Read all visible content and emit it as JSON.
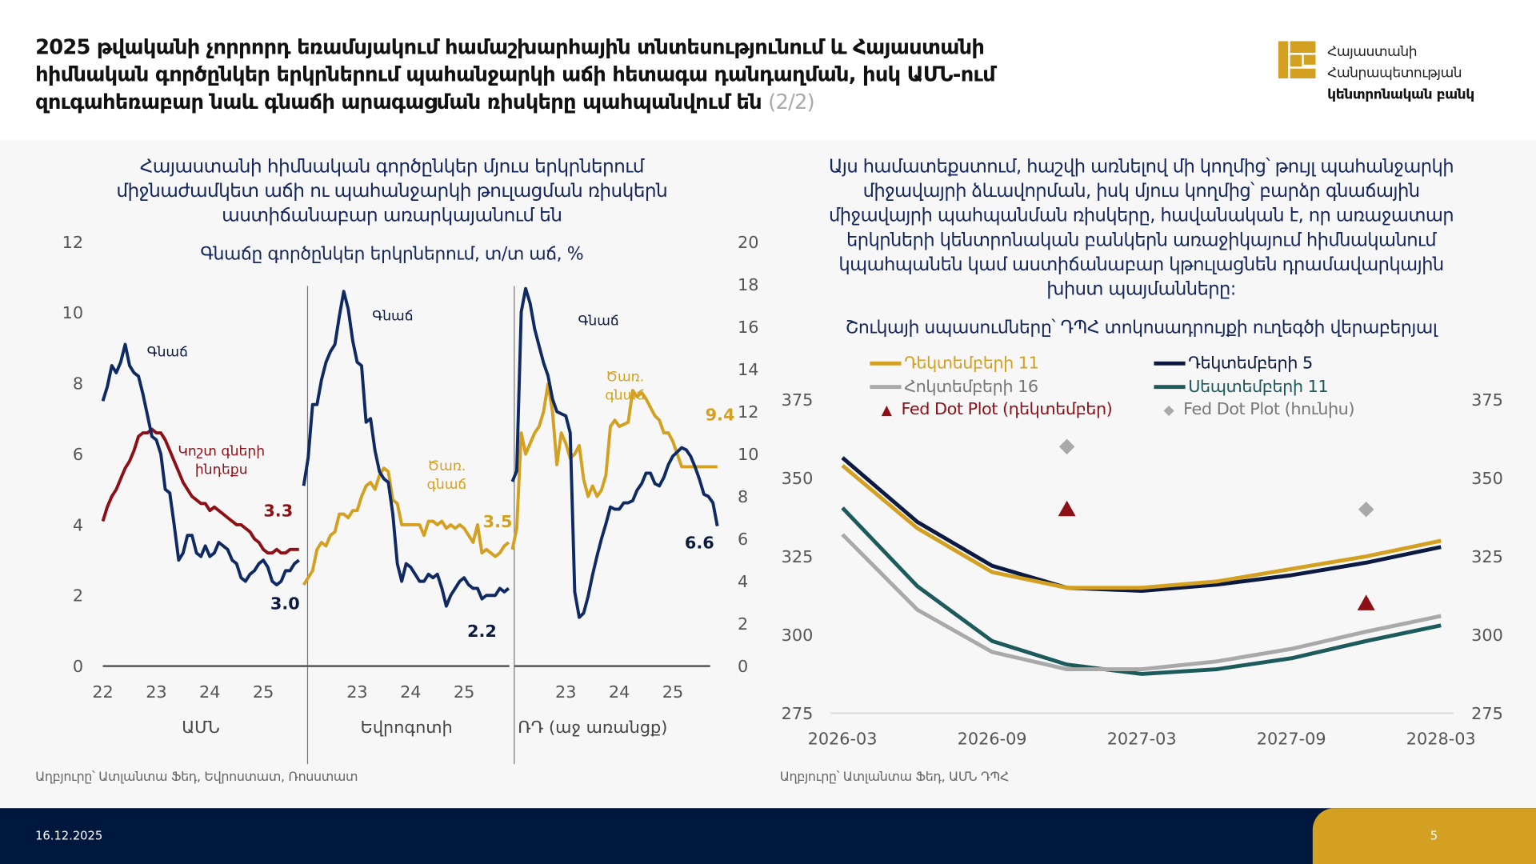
{
  "header": {
    "title_lines": [
      "2025 թվականի չորրորդ եռամսյակում համաշխարհային տնտեսությունում և Հայաստանի",
      "հիմնական գործընկեր երկրներում պահանջարկի աճի հետագա դանդաղման, իսկ ԱՄՆ-ում",
      "զուգահեռաբար նաև գնաճի արագացման ռիսկերը պահպանվում են"
    ],
    "page_part": "(2/2)",
    "logo_lines": [
      "Հայաստանի",
      "Հանրապետության",
      "կենտրոնական բանկ"
    ]
  },
  "left": {
    "heading_lines": [
      "Հայաստանի հիմնական գործընկեր մյուս երկրներում",
      "միջնաժամկետ աճի ու պահանջարկի թուլացման ռիսկերն",
      "աստիճանաբար առարկայանում են"
    ],
    "source": "Աղբյուրը՝ Ատլանտա Ֆեդ, Եվրոստատ, Ռոսստատ"
  },
  "right": {
    "heading_lines": [
      "Այս համատեքստում, հաշվի առնելով մի կողմից՝ թույլ պահանջարկի",
      "միջավայրի ձևավորման, իսկ մյուս կողմից՝ բարձր գնաճային",
      "միջավայրի պահպանման ռիսկերը, հավանական է, որ առաջատար",
      "երկրների կենտրոնական բանկերն առաջիկայում հիմնականում",
      "կպահպանեն կամ աստիճանաբար կթուլացնեն դրամավարկային",
      "խիստ պայմանները:"
    ],
    "source": "Աղբյուրը՝ Ատլանտա Ֆեդ, ԱՄՆ ԴՊՀ"
  },
  "footer": {
    "date": "16.12.2025",
    "page": "5"
  },
  "colors": {
    "navy": "#0f2a63",
    "gold": "#d4a021",
    "red": "#8c1016",
    "gray": "#a9a9a9",
    "teal": "#1d5a5c",
    "dark": "#0b1a40",
    "footer": "#00173d"
  },
  "chart_data": [
    {
      "type": "line",
      "title": "Գնաճը գործընկեր երկրներում, տ/տ աճ, %",
      "ylim_left": [
        0,
        12
      ],
      "yticks_left": [
        "0",
        "2",
        "4",
        "6",
        "8",
        "10",
        "12"
      ],
      "ylim_right": [
        0,
        20
      ],
      "yticks_right": [
        "0",
        "2",
        "4",
        "6",
        "8",
        "10",
        "12",
        "14",
        "16",
        "18",
        "20"
      ],
      "panels": [
        {
          "name": "ԱՄՆ",
          "axis": "left",
          "start": "2022-01",
          "xticks": [
            "22",
            "23",
            "24",
            "25"
          ],
          "series": [
            {
              "name": "Գնաճ",
              "color": "navy",
              "end_label": "3.0",
              "values": [
                7.5,
                7.9,
                8.5,
                8.3,
                8.6,
                9.1,
                8.5,
                8.3,
                8.2,
                7.7,
                7.1,
                6.5,
                6.4,
                6.0,
                5.0,
                4.9,
                4.0,
                3.0,
                3.2,
                3.7,
                3.7,
                3.2,
                3.1,
                3.4,
                3.1,
                3.2,
                3.5,
                3.4,
                3.3,
                3.0,
                2.9,
                2.5,
                2.4,
                2.6,
                2.7,
                2.9,
                3.0,
                2.8,
                2.4,
                2.3,
                2.4,
                2.7,
                2.7,
                2.9,
                3.0
              ]
            },
            {
              "name": "Կոշտ գների ինդեքս",
              "color": "red",
              "end_label": "3.3",
              "values": [
                4.1,
                4.5,
                4.8,
                5.0,
                5.3,
                5.6,
                5.8,
                6.1,
                6.5,
                6.6,
                6.6,
                6.7,
                6.6,
                6.6,
                6.4,
                6.1,
                5.8,
                5.5,
                5.2,
                5.0,
                4.8,
                4.7,
                4.6,
                4.6,
                4.4,
                4.5,
                4.4,
                4.3,
                4.2,
                4.1,
                4.0,
                4.0,
                3.9,
                3.8,
                3.6,
                3.5,
                3.3,
                3.2,
                3.2,
                3.3,
                3.2,
                3.2,
                3.3,
                3.3,
                3.3
              ]
            }
          ],
          "labels": [
            "Գնաճ",
            "Կոշտ գների",
            "ինդեքս"
          ]
        },
        {
          "name": "Եվրոգոտի",
          "axis": "left",
          "start": "2022-01",
          "xticks": [
            "23",
            "24",
            "25"
          ],
          "series": [
            {
              "name": "Գնաճ",
              "color": "navy",
              "end_label": "2.2",
              "values": [
                5.1,
                5.9,
                7.4,
                7.4,
                8.1,
                8.6,
                8.9,
                9.1,
                9.9,
                10.6,
                10.1,
                9.2,
                8.6,
                8.5,
                6.9,
                7.0,
                6.1,
                5.5,
                5.3,
                5.2,
                4.3,
                2.9,
                2.4,
                2.9,
                2.8,
                2.6,
                2.4,
                2.4,
                2.6,
                2.5,
                2.6,
                2.2,
                1.7,
                2.0,
                2.2,
                2.4,
                2.5,
                2.3,
                2.2,
                2.2,
                1.9,
                2.0,
                2.0,
                2.0,
                2.2,
                2.1,
                2.2
              ]
            },
            {
              "name": "Ծառ. գնաճ",
              "color": "gold",
              "end_label": "3.5",
              "values": [
                2.3,
                2.5,
                2.7,
                3.3,
                3.5,
                3.4,
                3.7,
                3.8,
                4.3,
                4.3,
                4.2,
                4.4,
                4.4,
                4.8,
                5.1,
                5.2,
                5.0,
                5.4,
                5.6,
                5.5,
                4.7,
                4.6,
                4.0,
                4.0,
                4.0,
                4.0,
                4.0,
                3.7,
                4.1,
                4.1,
                4.0,
                4.1,
                3.9,
                4.0,
                3.9,
                4.0,
                3.9,
                3.7,
                3.5,
                4.0,
                3.2,
                3.3,
                3.2,
                3.1,
                3.2,
                3.4,
                3.5
              ]
            }
          ],
          "labels": [
            "Գնաճ",
            "Ծառ.",
            "գնաճ"
          ]
        },
        {
          "name": "ՌԴ (աջ առանցք)",
          "axis": "right",
          "start": "2022-01",
          "xticks": [
            "23",
            "24",
            "25"
          ],
          "series": [
            {
              "name": "Գնաճ",
              "color": "navy",
              "end_label": "6.6",
              "values": [
                8.7,
                9.2,
                16.7,
                17.8,
                17.1,
                15.9,
                15.1,
                14.3,
                13.7,
                12.6,
                12.0,
                11.9,
                11.8,
                11.0,
                3.5,
                2.3,
                2.5,
                3.3,
                4.3,
                5.2,
                6.0,
                6.7,
                7.5,
                7.4,
                7.4,
                7.7,
                7.7,
                7.8,
                8.3,
                8.6,
                9.1,
                9.1,
                8.6,
                8.5,
                8.9,
                9.5,
                9.9,
                10.1,
                10.3,
                10.2,
                9.9,
                9.4,
                8.8,
                8.1,
                8.0,
                7.7,
                6.6
              ]
            },
            {
              "name": "Ծառ. գնաճ",
              "color": "gold",
              "end_label": "9.4",
              "values": [
                5.5,
                6.5,
                11.0,
                10.0,
                10.5,
                11.0,
                11.3,
                12.0,
                13.3,
                12.0,
                9.5,
                11.0,
                10.5,
                9.8,
                10.0,
                10.4,
                8.8,
                8.0,
                8.5,
                8.0,
                8.3,
                9.0,
                11.3,
                11.6,
                11.3,
                11.4,
                11.5,
                13.0,
                12.7,
                12.9,
                12.6,
                12.2,
                11.8,
                11.6,
                11.0,
                11.0,
                10.6,
                10.0,
                9.4,
                9.4,
                9.4,
                9.4,
                9.4,
                9.4,
                9.4,
                9.4,
                9.4
              ]
            }
          ],
          "labels": [
            "Գնաճ",
            "Ծառ.",
            "գնաճ"
          ]
        }
      ]
    },
    {
      "type": "line",
      "title": "Շուկայի սպասումները՝ ԴՊՀ տոկոսադրույքի ուղեգծի վերաբերյալ",
      "x": [
        "2026-03",
        "2026-06",
        "2026-09",
        "2026-12",
        "2027-03",
        "2027-06",
        "2027-09",
        "2027-12",
        "2028-03"
      ],
      "xticks": [
        "2026-03",
        "2026-09",
        "2027-03",
        "2027-09",
        "2028-03"
      ],
      "ylim": [
        275,
        375
      ],
      "yticks": [
        "275",
        "300",
        "325",
        "350",
        "375"
      ],
      "series": [
        {
          "name": "Դեկտեմբերի 11",
          "color": "gold",
          "values": [
            354,
            334,
            320,
            315,
            315,
            317,
            321,
            325,
            330
          ]
        },
        {
          "name": "Դեկտեմբերի 5",
          "color": "dark",
          "values": [
            356.5,
            336,
            322,
            315,
            314,
            316,
            319,
            323,
            328
          ]
        },
        {
          "name": "Հոկտեմբերի 16",
          "color": "gray",
          "values": [
            332,
            308,
            294.5,
            289,
            289,
            291.5,
            295.5,
            301,
            306
          ]
        },
        {
          "name": "Սեպտեմբերի 11",
          "color": "teal",
          "values": [
            340.5,
            315.5,
            298,
            290.5,
            287.5,
            289,
            292.5,
            298,
            303
          ]
        }
      ],
      "markers": [
        {
          "name": "Fed Dot Plot (դեկտեմբեր)",
          "color": "red",
          "shape": "triangle",
          "points": [
            [
              "2026-12",
              340
            ],
            [
              "2027-12",
              310
            ]
          ]
        },
        {
          "name": "Fed Dot Plot (հունիս)",
          "color": "gray",
          "shape": "diamond",
          "points": [
            [
              "2026-12",
              360
            ],
            [
              "2027-12",
              340
            ]
          ]
        }
      ]
    }
  ]
}
